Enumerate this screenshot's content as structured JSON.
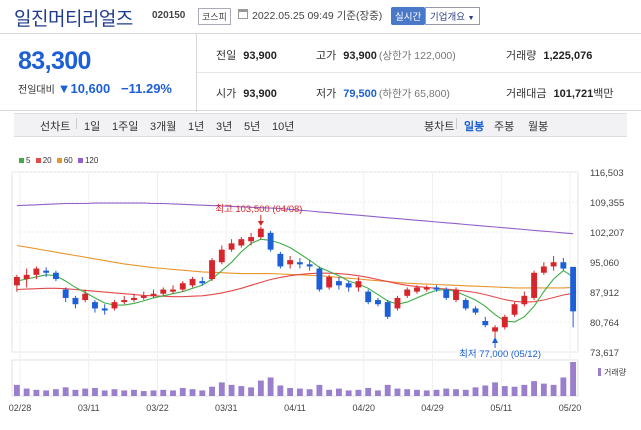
{
  "header": {
    "title": "일진머티리얼즈",
    "code": "020150",
    "market": "코스피",
    "datetime": "2022.05.25 09:49 기준(장중)",
    "realtime": "실시간",
    "company_info": "기업개요"
  },
  "summary": {
    "price": "83,300",
    "change_label": "전일대비",
    "change": "10,600",
    "change_pct": "−11.29%",
    "prev_label": "전일",
    "prev": "93,900",
    "high_label": "고가",
    "high": "93,900",
    "high_limit": "(상한가 122,000)",
    "volume_label": "거래량",
    "volume": "1,225,076",
    "open_label": "시가",
    "open": "93,900",
    "low_label": "저가",
    "low": "79,500",
    "low_limit": "(하한가 65,800)",
    "amount_label": "거래대금",
    "amount": "101,721",
    "amount_unit": "백만"
  },
  "tabs": {
    "line": "선차트",
    "d1": "1일",
    "w1": "1주일",
    "m3": "3개월",
    "y1": "1년",
    "y3": "3년",
    "y5": "5년",
    "y10": "10년",
    "candle": "봉차트",
    "day": "일봉",
    "week": "주봉",
    "month": "월봉"
  },
  "legend": {
    "ma5": "5",
    "ma20": "20",
    "ma60": "60",
    "ma120": "120",
    "volume": "거래량"
  },
  "colors": {
    "up": "#d7262b",
    "down": "#1c5fd6",
    "ma5": "#3fae47",
    "ma20": "#e34a4a",
    "ma60": "#e8962c",
    "ma120": "#9260c9"
  },
  "chart_data": {
    "type": "candlestick",
    "yticks": [
      "116,503",
      "109,355",
      "102,207",
      "95,060",
      "87,912",
      "80,764",
      "73,617"
    ],
    "xticks": [
      "02/28",
      "03/11",
      "03/22",
      "03/31",
      "04/11",
      "04/20",
      "04/29",
      "05/11",
      "05/20"
    ],
    "high_annotation": "최고 103,500 (04/08)",
    "low_annotation": "최저 77,000 (05/12)",
    "candles": [
      [
        89.5,
        91.5,
        88.0,
        92.0
      ],
      [
        91.0,
        92.0,
        89.0,
        93.5
      ],
      [
        92.0,
        93.5,
        91.0,
        94.0
      ],
      [
        93.0,
        92.5,
        91.5,
        93.8
      ],
      [
        92.5,
        91.0,
        90.5,
        93.0
      ],
      [
        88.5,
        86.5,
        85.5,
        89.0
      ],
      [
        86.5,
        85.0,
        84.0,
        87.0
      ],
      [
        86.0,
        87.5,
        85.5,
        88.5
      ],
      [
        85.5,
        84.0,
        83.0,
        86.0
      ],
      [
        84.0,
        83.5,
        82.5,
        85.0
      ],
      [
        84.0,
        85.5,
        83.5,
        86.0
      ],
      [
        85.5,
        86.0,
        85.0,
        87.0
      ],
      [
        86.0,
        86.5,
        85.5,
        87.5
      ],
      [
        86.5,
        87.0,
        86.0,
        88.0
      ],
      [
        87.0,
        87.5,
        86.5,
        88.5
      ],
      [
        87.5,
        88.5,
        87.0,
        89.0
      ],
      [
        88.0,
        88.5,
        87.5,
        89.5
      ],
      [
        88.5,
        90.0,
        88.0,
        90.5
      ],
      [
        89.5,
        91.0,
        89.0,
        91.5
      ],
      [
        90.5,
        90.0,
        89.5,
        91.5
      ],
      [
        91.0,
        95.5,
        90.5,
        96.0
      ],
      [
        95.0,
        98.0,
        94.5,
        99.0
      ],
      [
        98.0,
        99.5,
        97.5,
        100.5
      ],
      [
        99.0,
        100.5,
        98.5,
        101.0
      ],
      [
        100.0,
        101.0,
        99.0,
        102.0
      ],
      [
        101.0,
        103.0,
        100.5,
        103.5
      ],
      [
        102.0,
        98.0,
        97.5,
        102.5
      ],
      [
        97.0,
        94.0,
        93.5,
        97.5
      ],
      [
        94.5,
        95.5,
        93.5,
        96.5
      ],
      [
        95.0,
        94.5,
        93.5,
        96.0
      ],
      [
        94.5,
        94.0,
        93.0,
        95.5
      ],
      [
        93.5,
        88.5,
        88.0,
        94.0
      ],
      [
        89.0,
        91.5,
        88.5,
        92.0
      ],
      [
        90.5,
        89.5,
        88.5,
        91.5
      ],
      [
        90.0,
        89.0,
        88.0,
        90.5
      ],
      [
        89.0,
        90.5,
        88.0,
        91.5
      ],
      [
        88.0,
        85.5,
        85.0,
        88.5
      ],
      [
        86.0,
        85.0,
        84.5,
        86.5
      ],
      [
        85.5,
        82.0,
        81.5,
        86.0
      ],
      [
        84.0,
        86.5,
        83.5,
        87.0
      ],
      [
        87.0,
        88.5,
        86.5,
        89.0
      ],
      [
        88.0,
        89.0,
        87.5,
        89.5
      ],
      [
        88.5,
        89.0,
        88.0,
        89.5
      ],
      [
        89.0,
        88.5,
        88.0,
        89.5
      ],
      [
        88.5,
        86.5,
        86.0,
        89.0
      ],
      [
        86.0,
        88.5,
        85.5,
        89.0
      ],
      [
        86.0,
        84.0,
        83.5,
        86.5
      ],
      [
        84.0,
        83.0,
        82.5,
        84.5
      ],
      [
        81.0,
        80.0,
        79.5,
        82.0
      ],
      [
        78.5,
        79.5,
        77.0,
        80.0
      ],
      [
        79.5,
        82.0,
        79.0,
        82.5
      ],
      [
        82.5,
        85.0,
        82.0,
        85.5
      ],
      [
        85.0,
        87.0,
        84.5,
        88.0
      ],
      [
        86.5,
        92.5,
        86.0,
        93.0
      ],
      [
        92.5,
        94.0,
        92.0,
        95.0
      ],
      [
        94.0,
        95.0,
        93.0,
        96.5
      ],
      [
        95.0,
        93.5,
        93.0,
        96.0
      ],
      [
        93.9,
        83.3,
        79.5,
        93.9
      ]
    ],
    "ma5": [
      90.5,
      91.0,
      91.5,
      92.0,
      91.8,
      90.5,
      89.0,
      87.8,
      86.5,
      85.3,
      84.8,
      84.8,
      85.2,
      85.8,
      86.5,
      87.0,
      87.5,
      88.0,
      88.8,
      89.5,
      91.0,
      93.0,
      95.0,
      97.5,
      99.5,
      100.5,
      100.2,
      99.5,
      98.5,
      97.0,
      95.5,
      93.8,
      92.8,
      91.8,
      90.5,
      89.8,
      88.8,
      87.3,
      85.8,
      85.0,
      85.5,
      86.5,
      87.5,
      88.3,
      88.5,
      88.0,
      87.0,
      86.0,
      84.5,
      82.5,
      81.0,
      80.8,
      82.0,
      84.5,
      88.0,
      91.0,
      93.0,
      91.5
    ],
    "ma20": [
      88.5,
      88.6,
      88.7,
      88.8,
      88.8,
      88.7,
      88.5,
      88.3,
      88.1,
      87.9,
      87.7,
      87.5,
      87.3,
      87.1,
      87.0,
      86.9,
      86.8,
      86.8,
      86.9,
      87.0,
      87.3,
      87.7,
      88.2,
      88.8,
      89.5,
      90.2,
      90.9,
      91.4,
      91.8,
      92.1,
      92.3,
      92.4,
      92.4,
      92.3,
      92.1,
      91.8,
      91.4,
      90.9,
      90.4,
      89.9,
      89.5,
      89.2,
      89.0,
      88.8,
      88.6,
      88.4,
      88.1,
      87.8,
      87.3,
      86.7,
      86.1,
      85.7,
      85.5,
      85.6,
      86.0,
      86.6,
      87.2,
      87.6
    ],
    "ma60": [
      99.0,
      98.6,
      98.2,
      97.8,
      97.4,
      97.0,
      96.6,
      96.2,
      95.8,
      95.4,
      95.0,
      94.6,
      94.3,
      94.0,
      93.7,
      93.5,
      93.3,
      93.1,
      92.9,
      92.7,
      92.6,
      92.5,
      92.4,
      92.3,
      92.3,
      92.3,
      92.3,
      92.2,
      92.1,
      92.0,
      91.9,
      91.8,
      91.6,
      91.4,
      91.2,
      91.0,
      90.8,
      90.6,
      90.4,
      90.2,
      90.0,
      89.9,
      89.8,
      89.7,
      89.6,
      89.5,
      89.4,
      89.3,
      89.2,
      89.1,
      89.0,
      88.9,
      88.9,
      88.9,
      88.9,
      88.9,
      88.9,
      89.0
    ],
    "ma120": [
      108.5,
      108.6,
      108.7,
      108.8,
      108.9,
      109.0,
      109.0,
      109.0,
      109.1,
      109.1,
      109.1,
      109.1,
      109.1,
      109.1,
      109.0,
      109.0,
      108.9,
      108.8,
      108.7,
      108.6,
      108.5,
      108.4,
      108.3,
      108.2,
      108.1,
      108.0,
      107.9,
      107.8,
      107.6,
      107.4,
      107.2,
      107.0,
      106.8,
      106.6,
      106.4,
      106.2,
      106.0,
      105.8,
      105.6,
      105.4,
      105.2,
      105.0,
      104.8,
      104.6,
      104.4,
      104.2,
      104.0,
      103.8,
      103.6,
      103.4,
      103.2,
      103.0,
      102.8,
      102.6,
      102.4,
      102.2,
      102.0,
      101.8
    ],
    "volume": [
      18,
      12,
      10,
      9,
      11,
      14,
      10,
      12,
      13,
      9,
      11,
      9,
      10,
      8,
      9,
      10,
      9,
      13,
      11,
      9,
      15,
      22,
      18,
      16,
      14,
      25,
      30,
      17,
      13,
      12,
      11,
      18,
      10,
      12,
      9,
      10,
      13,
      9,
      18,
      12,
      11,
      10,
      9,
      10,
      12,
      11,
      10,
      14,
      17,
      22,
      16,
      15,
      18,
      24,
      20,
      18,
      30,
      55
    ]
  }
}
